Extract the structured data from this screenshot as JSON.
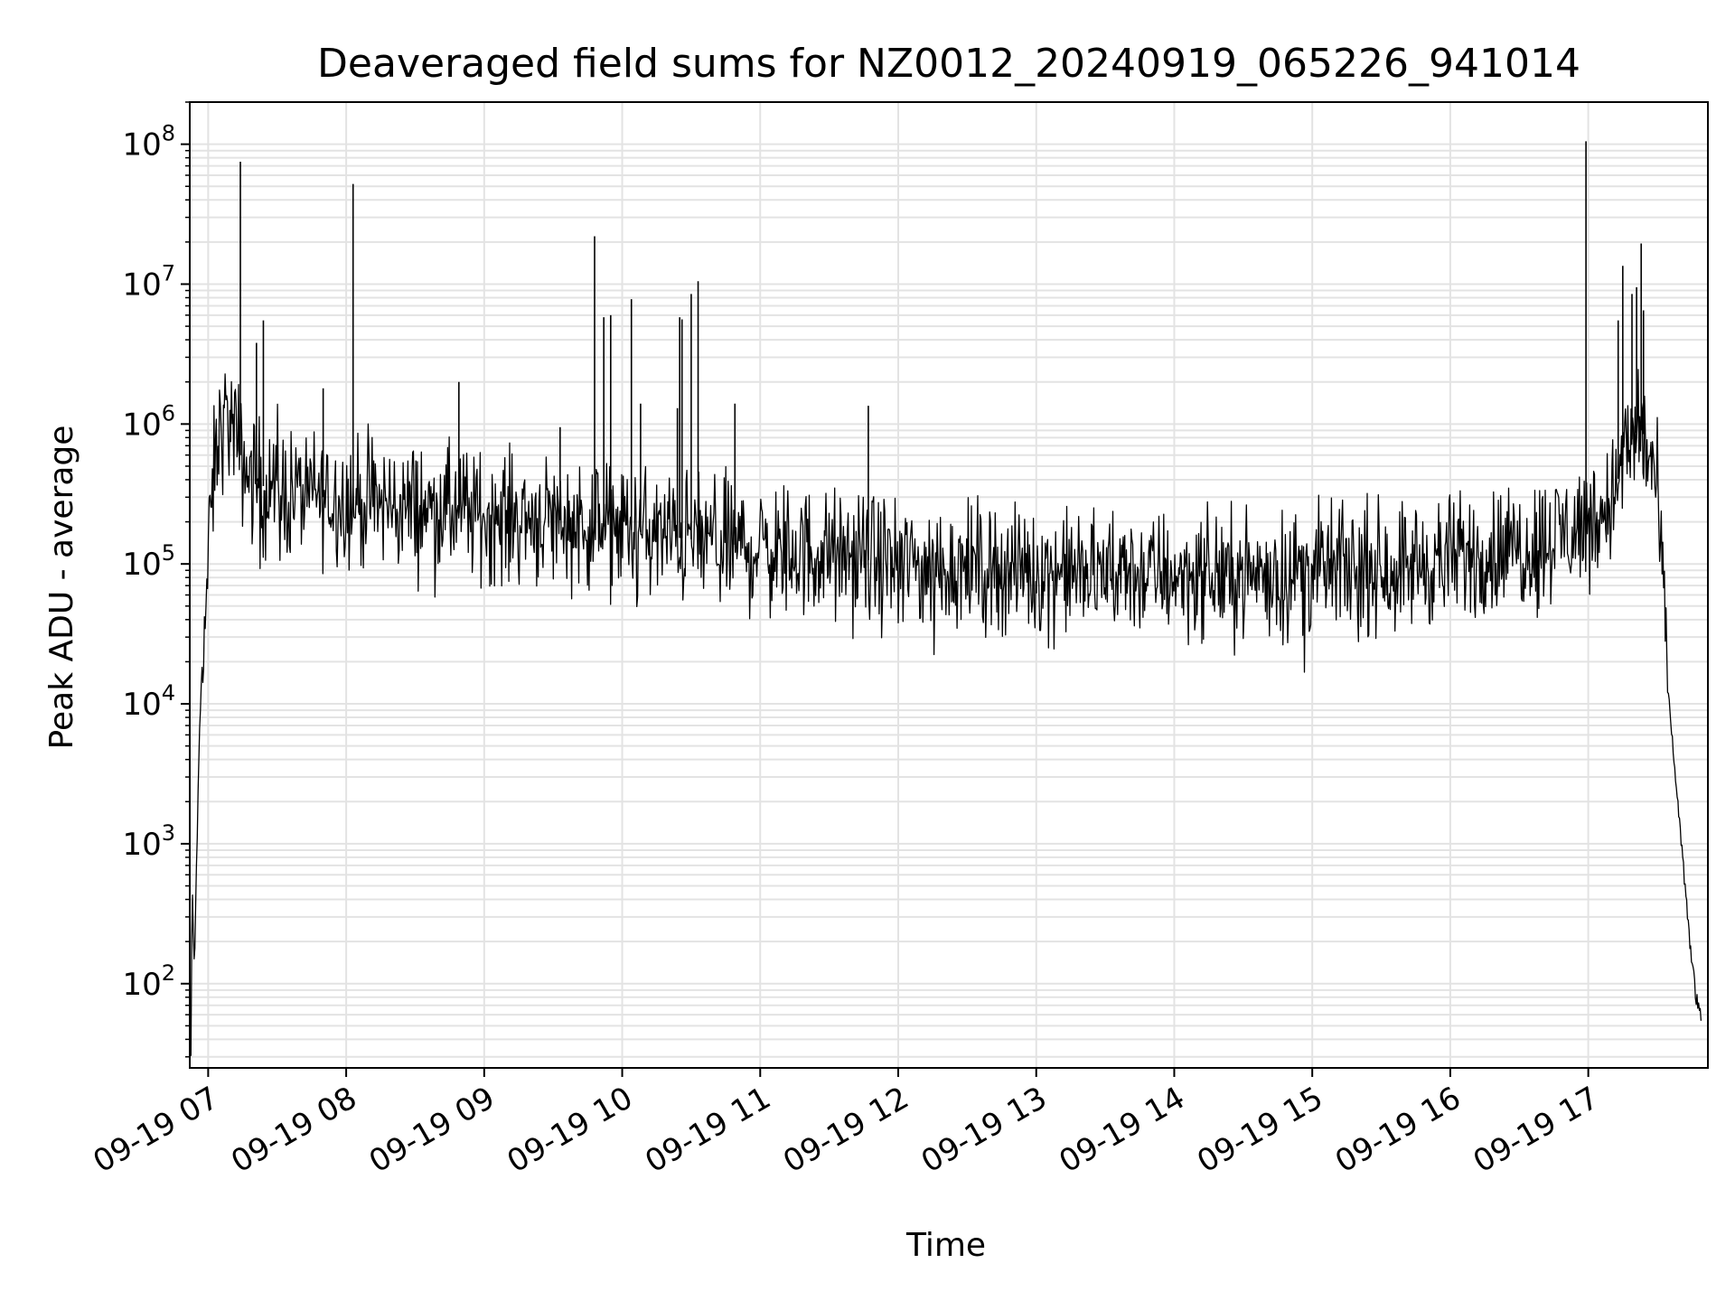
{
  "chart_data": {
    "type": "line",
    "title": "Deaveraged field sums for NZ0012_20240919_065226_941014",
    "xlabel": "Time",
    "ylabel": "Peak ADU - average",
    "yscale": "log",
    "ylim": [
      25,
      200000000
    ],
    "xlim": [
      "2024-09-19T06:52",
      "2024-09-19T17:52"
    ],
    "grid": true,
    "line_color": "#000000",
    "x_ticks": [
      {
        "time": "2024-09-19T07:00",
        "label": "09-19 07"
      },
      {
        "time": "2024-09-19T08:00",
        "label": "09-19 08"
      },
      {
        "time": "2024-09-19T09:00",
        "label": "09-19 09"
      },
      {
        "time": "2024-09-19T10:00",
        "label": "09-19 10"
      },
      {
        "time": "2024-09-19T11:00",
        "label": "09-19 11"
      },
      {
        "time": "2024-09-19T12:00",
        "label": "09-19 12"
      },
      {
        "time": "2024-09-19T13:00",
        "label": "09-19 13"
      },
      {
        "time": "2024-09-19T14:00",
        "label": "09-19 14"
      },
      {
        "time": "2024-09-19T15:00",
        "label": "09-19 15"
      },
      {
        "time": "2024-09-19T16:00",
        "label": "09-19 16"
      },
      {
        "time": "2024-09-19T17:00",
        "label": "09-19 17"
      }
    ],
    "y_ticks": [
      {
        "value": 100,
        "base": "10",
        "exp": "2"
      },
      {
        "value": 1000,
        "base": "10",
        "exp": "3"
      },
      {
        "value": 10000,
        "base": "10",
        "exp": "4"
      },
      {
        "value": 100000,
        "base": "10",
        "exp": "5"
      },
      {
        "value": 1000000,
        "base": "10",
        "exp": "6"
      },
      {
        "value": 10000000,
        "base": "10",
        "exp": "7"
      },
      {
        "value": 100000000,
        "base": "10",
        "exp": "8"
      }
    ],
    "series": [
      {
        "x": [
          "2024-09-19T06:52:30",
          "2024-09-19T06:53",
          "2024-09-19T06:54",
          "2024-09-19T06:55",
          "2024-09-19T06:56",
          "2024-09-19T06:57",
          "2024-09-19T06:58",
          "2024-09-19T07:00",
          "2024-09-19T07:02",
          "2024-09-19T07:04",
          "2024-09-19T07:06",
          "2024-09-19T07:08",
          "2024-09-19T07:10",
          "2024-09-19T07:12",
          "2024-09-19T07:14",
          "2024-09-19T07:16",
          "2024-09-19T07:18",
          "2024-09-19T07:20",
          "2024-09-19T07:22",
          "2024-09-19T07:24",
          "2024-09-19T07:26",
          "2024-09-19T07:30",
          "2024-09-19T07:35",
          "2024-09-19T07:40",
          "2024-09-19T07:45",
          "2024-09-19T07:50",
          "2024-09-19T07:55",
          "2024-09-19T08:00",
          "2024-09-19T08:05",
          "2024-09-19T08:10",
          "2024-09-19T08:20",
          "2024-09-19T08:30",
          "2024-09-19T08:40",
          "2024-09-19T08:50",
          "2024-09-19T09:00",
          "2024-09-19T09:15",
          "2024-09-19T09:30",
          "2024-09-19T09:45",
          "2024-09-19T10:00",
          "2024-09-19T10:15",
          "2024-09-19T10:30",
          "2024-09-19T10:45",
          "2024-09-19T11:00",
          "2024-09-19T11:30",
          "2024-09-19T12:00",
          "2024-09-19T12:30",
          "2024-09-19T13:00",
          "2024-09-19T13:30",
          "2024-09-19T14:00",
          "2024-09-19T14:30",
          "2024-09-19T15:00",
          "2024-09-19T15:30",
          "2024-09-19T16:00",
          "2024-09-19T16:15",
          "2024-09-19T16:30",
          "2024-09-19T16:40",
          "2024-09-19T16:45",
          "2024-09-19T16:50",
          "2024-09-19T16:55",
          "2024-09-19T17:00",
          "2024-09-19T17:05",
          "2024-09-19T17:10",
          "2024-09-19T17:14",
          "2024-09-19T17:17",
          "2024-09-19T17:20",
          "2024-09-19T17:23",
          "2024-09-19T17:26",
          "2024-09-19T17:29",
          "2024-09-19T17:32",
          "2024-09-19T17:35",
          "2024-09-19T17:38",
          "2024-09-19T17:41",
          "2024-09-19T17:44",
          "2024-09-19T17:47",
          "2024-09-19T17:49"
        ],
        "y": [
          30,
          500,
          120,
          800,
          4000,
          15000,
          25000,
          100000,
          350000,
          700000,
          1000000,
          1100000,
          1000000,
          800000,
          600000,
          500000,
          420000,
          400000,
          380000,
          360000,
          350000,
          340000,
          330000,
          320000,
          310000,
          300000,
          300000,
          290000,
          280000,
          270000,
          260000,
          250000,
          240000,
          230000,
          220000,
          215000,
          210000,
          190000,
          180000,
          160000,
          150000,
          140000,
          130000,
          115000,
          100000,
          95000,
          90000,
          85000,
          85000,
          85000,
          90000,
          95000,
          105000,
          120000,
          130000,
          150000,
          160000,
          170000,
          180000,
          200000,
          220000,
          300000,
          450000,
          650000,
          850000,
          900000,
          750000,
          400000,
          100000,
          10000,
          3000,
          800,
          200,
          80,
          50
        ],
        "noise_amplitude_dex": 0.35
      }
    ],
    "spikes": [
      {
        "x": "2024-09-19T07:14",
        "y": 75000000
      },
      {
        "x": "2024-09-19T07:21",
        "y": 3800000
      },
      {
        "x": "2024-09-19T07:24",
        "y": 5500000
      },
      {
        "x": "2024-09-19T07:50",
        "y": 1800000
      },
      {
        "x": "2024-09-19T08:03",
        "y": 52000000
      },
      {
        "x": "2024-09-19T08:49",
        "y": 2000000
      },
      {
        "x": "2024-09-19T09:33",
        "y": 950000
      },
      {
        "x": "2024-09-19T09:48",
        "y": 22000000
      },
      {
        "x": "2024-09-19T09:52",
        "y": 5800000
      },
      {
        "x": "2024-09-19T09:55",
        "y": 6000000
      },
      {
        "x": "2024-09-19T10:04",
        "y": 7800000
      },
      {
        "x": "2024-09-19T10:08",
        "y": 1400000
      },
      {
        "x": "2024-09-19T10:24",
        "y": 1300000
      },
      {
        "x": "2024-09-19T10:25",
        "y": 5800000
      },
      {
        "x": "2024-09-19T10:26",
        "y": 5600000
      },
      {
        "x": "2024-09-19T10:30",
        "y": 8500000
      },
      {
        "x": "2024-09-19T10:33",
        "y": 10500000
      },
      {
        "x": "2024-09-19T10:49",
        "y": 1400000
      },
      {
        "x": "2024-09-19T11:47",
        "y": 1350000
      },
      {
        "x": "2024-09-19T16:59",
        "y": 105000000
      },
      {
        "x": "2024-09-19T17:13",
        "y": 5500000
      },
      {
        "x": "2024-09-19T17:15",
        "y": 13500000
      },
      {
        "x": "2024-09-19T17:19",
        "y": 8500000
      },
      {
        "x": "2024-09-19T17:21",
        "y": 9500000
      },
      {
        "x": "2024-09-19T17:23",
        "y": 19500000
      },
      {
        "x": "2024-09-19T17:24",
        "y": 6500000
      }
    ]
  }
}
